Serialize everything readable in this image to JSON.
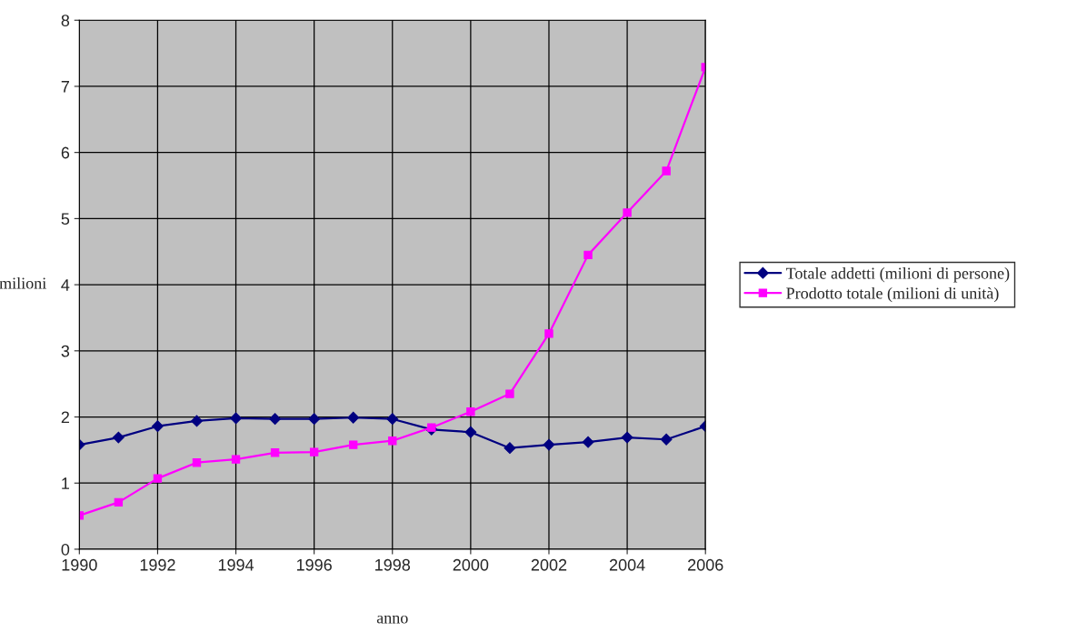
{
  "chart_data": {
    "type": "line",
    "xlabel": "anno",
    "ylabel": "milioni",
    "x": [
      1990,
      1991,
      1992,
      1993,
      1994,
      1995,
      1996,
      1997,
      1998,
      1999,
      2000,
      2001,
      2002,
      2003,
      2004,
      2005,
      2006
    ],
    "series": [
      {
        "name": "Totale addetti (milioni di persone)",
        "color": "#000080",
        "marker": "diamond",
        "values": [
          1.58,
          1.69,
          1.86,
          1.94,
          1.98,
          1.97,
          1.97,
          1.99,
          1.97,
          1.81,
          1.77,
          1.53,
          1.58,
          1.62,
          1.69,
          1.66,
          1.86
        ]
      },
      {
        "name": "Prodotto totale (milioni di unità)",
        "color": "#ff00ff",
        "marker": "square",
        "values": [
          0.51,
          0.71,
          1.07,
          1.31,
          1.36,
          1.46,
          1.47,
          1.58,
          1.64,
          1.84,
          2.08,
          2.35,
          3.26,
          4.45,
          5.09,
          5.72,
          7.29
        ]
      }
    ],
    "xlim": [
      1990,
      2006
    ],
    "xticks": [
      1990,
      1992,
      1994,
      1996,
      1998,
      2000,
      2002,
      2004,
      2006
    ],
    "ylim": [
      0,
      8
    ],
    "yticks": [
      0,
      1,
      2,
      3,
      4,
      5,
      6,
      7,
      8
    ],
    "grid": true,
    "legend": "right",
    "line_style": "solid"
  }
}
